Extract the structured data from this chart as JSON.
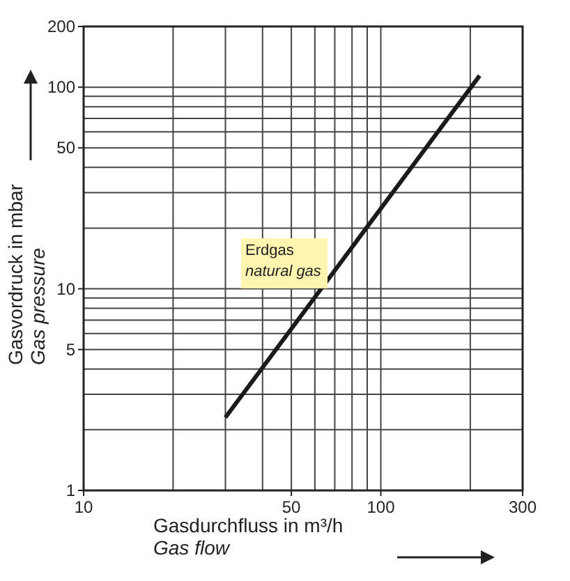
{
  "chart_data": {
    "type": "line",
    "xlabel": "Gasdurchfluss in m³/h\nGas flow",
    "ylabel": "Gasvordruck in mbar\nGas pressure",
    "log": "xy",
    "grid": true,
    "series": [
      {
        "color": "#1a1a1a",
        "x": [
          30,
          215
        ],
        "values": [
          2.3,
          114
        ]
      }
    ],
    "xlim": [
      10,
      300
    ],
    "xticks": [
      10,
      {
        "value": 20,
        "label": null
      },
      {
        "value": 30,
        "label": null
      },
      {
        "value": 40,
        "label": null
      },
      50,
      {
        "value": 60,
        "label": null
      },
      {
        "value": 70,
        "label": null
      },
      {
        "value": 80,
        "label": null
      },
      {
        "value": 90,
        "label": null
      },
      100,
      {
        "value": 200,
        "label": null
      },
      300
    ],
    "ylim": [
      1,
      200
    ],
    "yticks": [
      1,
      {
        "value": 2,
        "label": null
      },
      {
        "value": 3,
        "label": null
      },
      {
        "value": 4,
        "label": null
      },
      5,
      {
        "value": 6,
        "label": null
      },
      {
        "value": 7,
        "label": null
      },
      {
        "value": 8,
        "label": null
      },
      {
        "value": 9,
        "label": null
      },
      10,
      {
        "value": 20,
        "label": null
      },
      {
        "value": 30,
        "label": null
      },
      {
        "value": 40,
        "label": null
      },
      50,
      {
        "value": 60,
        "label": null
      },
      {
        "value": 70,
        "label": null
      },
      {
        "value": 80,
        "label": null
      },
      {
        "value": 90,
        "label": null
      },
      100,
      200
    ],
    "annotations": [
      "Erdgas",
      "natural gas"
    ],
    "marker": "none",
    "line_style": "solid"
  }
}
